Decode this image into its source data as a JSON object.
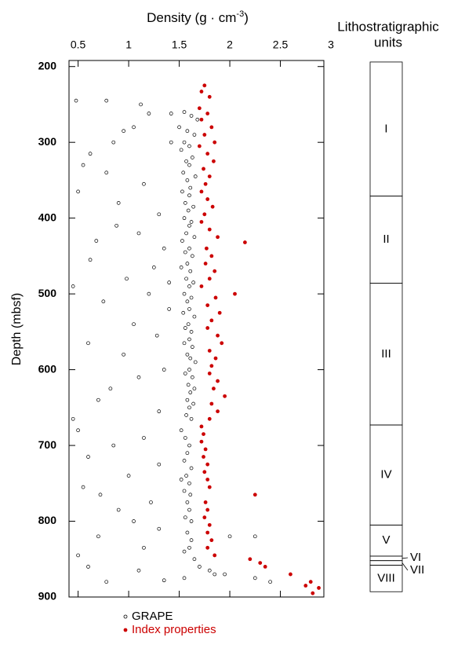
{
  "chart_data": {
    "type": "scatter",
    "xlabel": {
      "text": "Density (g · cm",
      "superscript": "-3",
      "suffix": ")"
    },
    "ylabel": "Depth (mbsf)",
    "xlim": [
      0.41,
      2.93
    ],
    "xticks": [
      0.5,
      1,
      1.5,
      2,
      2.5,
      3
    ],
    "ylim": [
      192,
      900
    ],
    "yticks": [
      200,
      300,
      400,
      500,
      600,
      700,
      800,
      900
    ],
    "y_inverted": true,
    "series": [
      {
        "name": "GRAPE",
        "color": "#000000",
        "marker": "open",
        "points": [
          [
            1.55,
            260
          ],
          [
            1.62,
            265
          ],
          [
            1.68,
            270
          ],
          [
            1.5,
            280
          ],
          [
            1.58,
            285
          ],
          [
            1.65,
            290
          ],
          [
            1.55,
            300
          ],
          [
            1.6,
            305
          ],
          [
            1.52,
            310
          ],
          [
            1.63,
            320
          ],
          [
            1.57,
            325
          ],
          [
            1.6,
            330
          ],
          [
            1.54,
            340
          ],
          [
            1.66,
            345
          ],
          [
            1.58,
            350
          ],
          [
            1.61,
            360
          ],
          [
            1.53,
            365
          ],
          [
            1.6,
            370
          ],
          [
            1.56,
            380
          ],
          [
            1.64,
            385
          ],
          [
            1.59,
            390
          ],
          [
            1.55,
            400
          ],
          [
            1.62,
            405
          ],
          [
            1.6,
            410
          ],
          [
            1.57,
            420
          ],
          [
            1.65,
            425
          ],
          [
            1.53,
            430
          ],
          [
            1.6,
            440
          ],
          [
            1.56,
            445
          ],
          [
            1.63,
            450
          ],
          [
            1.58,
            460
          ],
          [
            1.52,
            465
          ],
          [
            1.61,
            470
          ],
          [
            1.57,
            480
          ],
          [
            1.64,
            485
          ],
          [
            1.6,
            490
          ],
          [
            1.55,
            500
          ],
          [
            1.62,
            505
          ],
          [
            1.58,
            510
          ],
          [
            1.6,
            520
          ],
          [
            1.54,
            525
          ],
          [
            1.65,
            530
          ],
          [
            1.59,
            540
          ],
          [
            1.56,
            545
          ],
          [
            1.62,
            550
          ],
          [
            1.6,
            560
          ],
          [
            1.55,
            565
          ],
          [
            1.63,
            570
          ],
          [
            1.58,
            580
          ],
          [
            1.61,
            585
          ],
          [
            1.66,
            590
          ],
          [
            1.6,
            600
          ],
          [
            1.56,
            605
          ],
          [
            1.63,
            610
          ],
          [
            1.59,
            620
          ],
          [
            1.65,
            625
          ],
          [
            1.61,
            630
          ],
          [
            1.58,
            640
          ],
          [
            1.64,
            645
          ],
          [
            1.6,
            650
          ],
          [
            1.57,
            660
          ],
          [
            1.62,
            665
          ],
          [
            1.52,
            680
          ],
          [
            1.56,
            690
          ],
          [
            1.6,
            700
          ],
          [
            1.58,
            710
          ],
          [
            1.55,
            720
          ],
          [
            1.62,
            730
          ],
          [
            1.57,
            740
          ],
          [
            1.52,
            745
          ],
          [
            1.6,
            750
          ],
          [
            1.55,
            760
          ],
          [
            1.61,
            765
          ],
          [
            1.58,
            775
          ],
          [
            1.6,
            785
          ],
          [
            1.56,
            795
          ],
          [
            1.62,
            800
          ],
          [
            1.58,
            815
          ],
          [
            1.62,
            825
          ],
          [
            1.6,
            835
          ],
          [
            1.55,
            840
          ],
          [
            1.65,
            850
          ],
          [
            1.7,
            860
          ],
          [
            1.8,
            865
          ],
          [
            1.95,
            870
          ],
          [
            1.55,
            875
          ],
          [
            0.48,
            245
          ],
          [
            0.78,
            245
          ],
          [
            1.12,
            250
          ],
          [
            1.2,
            262
          ],
          [
            1.42,
            262
          ],
          [
            1.05,
            280
          ],
          [
            0.95,
            285
          ],
          [
            0.85,
            300
          ],
          [
            0.62,
            315
          ],
          [
            0.55,
            330
          ],
          [
            0.78,
            340
          ],
          [
            1.15,
            355
          ],
          [
            0.5,
            365
          ],
          [
            0.9,
            380
          ],
          [
            1.3,
            395
          ],
          [
            0.88,
            410
          ],
          [
            1.1,
            420
          ],
          [
            0.68,
            430
          ],
          [
            1.35,
            440
          ],
          [
            0.62,
            455
          ],
          [
            1.25,
            465
          ],
          [
            0.98,
            480
          ],
          [
            0.45,
            490
          ],
          [
            1.2,
            500
          ],
          [
            0.75,
            510
          ],
          [
            1.4,
            520
          ],
          [
            1.05,
            540
          ],
          [
            1.28,
            555
          ],
          [
            0.6,
            565
          ],
          [
            0.95,
            580
          ],
          [
            1.35,
            600
          ],
          [
            1.1,
            610
          ],
          [
            0.82,
            625
          ],
          [
            0.7,
            640
          ],
          [
            1.3,
            655
          ],
          [
            0.45,
            665
          ],
          [
            0.5,
            680
          ],
          [
            1.15,
            690
          ],
          [
            0.85,
            700
          ],
          [
            0.6,
            715
          ],
          [
            1.3,
            725
          ],
          [
            1.0,
            740
          ],
          [
            0.55,
            755
          ],
          [
            0.72,
            765
          ],
          [
            1.22,
            775
          ],
          [
            0.9,
            785
          ],
          [
            1.05,
            800
          ],
          [
            1.3,
            810
          ],
          [
            0.7,
            820
          ],
          [
            1.15,
            835
          ],
          [
            0.5,
            845
          ],
          [
            0.6,
            860
          ],
          [
            1.1,
            865
          ],
          [
            1.85,
            870
          ],
          [
            2.25,
            875
          ],
          [
            1.35,
            878
          ],
          [
            2.4,
            880
          ],
          [
            0.78,
            880
          ],
          [
            2.0,
            820
          ],
          [
            2.25,
            820
          ],
          [
            1.4,
            485
          ],
          [
            1.42,
            300
          ]
        ]
      },
      {
        "name": "Index properties",
        "color": "#cc0000",
        "marker": "filled",
        "points": [
          [
            1.75,
            225
          ],
          [
            1.72,
            233
          ],
          [
            1.8,
            240
          ],
          [
            1.7,
            255
          ],
          [
            1.78,
            262
          ],
          [
            1.72,
            270
          ],
          [
            1.82,
            280
          ],
          [
            1.75,
            290
          ],
          [
            1.85,
            300
          ],
          [
            1.7,
            305
          ],
          [
            1.78,
            315
          ],
          [
            1.84,
            325
          ],
          [
            1.74,
            335
          ],
          [
            1.8,
            345
          ],
          [
            1.76,
            355
          ],
          [
            1.72,
            365
          ],
          [
            1.78,
            375
          ],
          [
            1.83,
            385
          ],
          [
            1.75,
            395
          ],
          [
            1.72,
            405
          ],
          [
            1.8,
            415
          ],
          [
            1.88,
            425
          ],
          [
            2.15,
            432
          ],
          [
            1.77,
            440
          ],
          [
            1.82,
            450
          ],
          [
            1.76,
            460
          ],
          [
            1.85,
            470
          ],
          [
            1.8,
            480
          ],
          [
            1.72,
            490
          ],
          [
            2.05,
            500
          ],
          [
            1.86,
            505
          ],
          [
            1.78,
            515
          ],
          [
            1.9,
            525
          ],
          [
            1.82,
            535
          ],
          [
            1.78,
            545
          ],
          [
            1.88,
            555
          ],
          [
            1.92,
            565
          ],
          [
            1.8,
            575
          ],
          [
            1.86,
            585
          ],
          [
            1.82,
            595
          ],
          [
            1.8,
            605
          ],
          [
            1.88,
            615
          ],
          [
            1.84,
            625
          ],
          [
            1.95,
            635
          ],
          [
            1.82,
            645
          ],
          [
            1.88,
            655
          ],
          [
            1.8,
            665
          ],
          [
            1.72,
            675
          ],
          [
            1.74,
            685
          ],
          [
            1.72,
            695
          ],
          [
            1.76,
            705
          ],
          [
            1.74,
            715
          ],
          [
            1.78,
            725
          ],
          [
            1.75,
            735
          ],
          [
            1.78,
            745
          ],
          [
            1.8,
            755
          ],
          [
            2.25,
            765
          ],
          [
            1.76,
            775
          ],
          [
            1.78,
            785
          ],
          [
            1.75,
            795
          ],
          [
            1.8,
            805
          ],
          [
            1.78,
            815
          ],
          [
            1.82,
            825
          ],
          [
            1.78,
            835
          ],
          [
            1.85,
            845
          ],
          [
            2.2,
            850
          ],
          [
            2.3,
            855
          ],
          [
            2.35,
            860
          ],
          [
            2.6,
            870
          ],
          [
            2.8,
            880
          ],
          [
            2.75,
            885
          ],
          [
            2.88,
            888
          ],
          [
            2.82,
            895
          ]
        ]
      }
    ],
    "units_title": [
      "Lithostratigraphic",
      "units"
    ],
    "units": [
      {
        "label": "I",
        "top": 194,
        "bottom": 371
      },
      {
        "label": "II",
        "top": 371,
        "bottom": 486
      },
      {
        "label": "III",
        "top": 486,
        "bottom": 673
      },
      {
        "label": "IV",
        "top": 673,
        "bottom": 805
      },
      {
        "label": "V",
        "top": 805,
        "bottom": 846
      },
      {
        "label": "VI",
        "top": 846,
        "bottom": 852
      },
      {
        "label": "VII",
        "top": 852,
        "bottom": 858
      },
      {
        "label": "VIII",
        "top": 858,
        "bottom": 893
      }
    ]
  }
}
